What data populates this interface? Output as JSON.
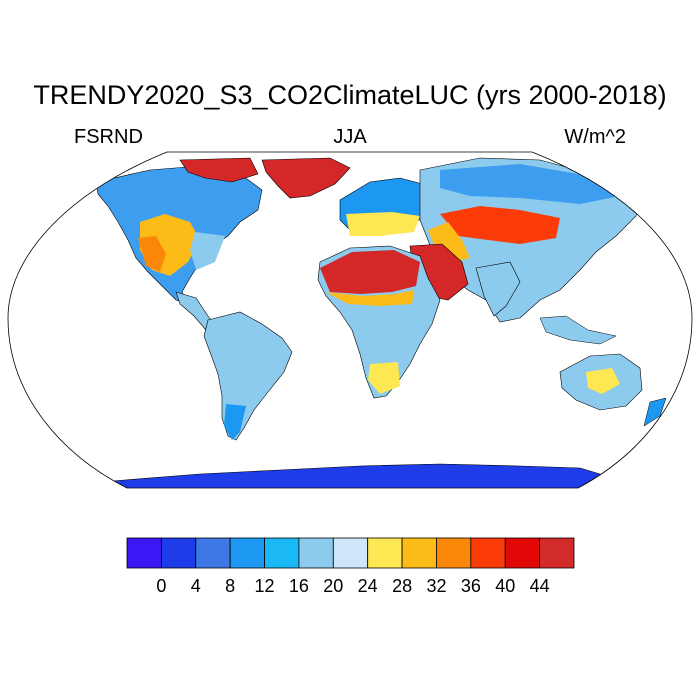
{
  "title": "TRENDY2020_S3_CO2ClimateLUC (yrs 2000-2018)",
  "left_label": "FSRND",
  "center_label": "JJA",
  "right_label": "W/m^2",
  "colorbar": {
    "colors": [
      "#3d16f5",
      "#1e3ce8",
      "#3d78e6",
      "#1c97f2",
      "#1ab9f5",
      "#8ccbee",
      "#cde7f8",
      "#fde752",
      "#fdbb18",
      "#fb8708",
      "#fb3c08",
      "#e30808",
      "#d32a2a"
    ],
    "tick_labels": [
      "0",
      "4",
      "8",
      "12",
      "16",
      "20",
      "24",
      "28",
      "32",
      "36",
      "40",
      "44"
    ]
  },
  "map_legend": {
    "ocean": "#ffffff",
    "greenland": "#d42727",
    "sahara": "#d42727",
    "antarctica": "#1e3ce8",
    "temperate": "#8ccbee",
    "boreal": "#1c97f2"
  }
}
